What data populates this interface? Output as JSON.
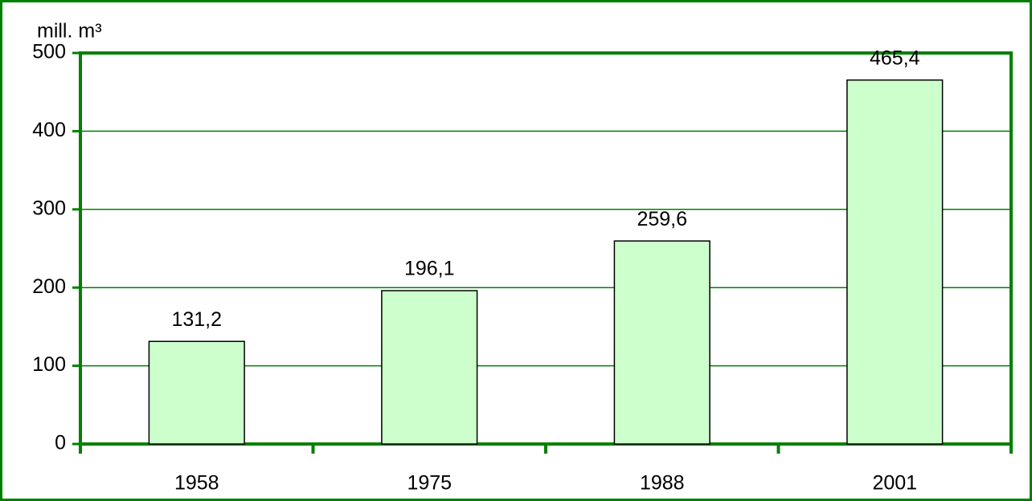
{
  "chart_data": {
    "type": "bar",
    "y_axis_label": "mill. m³",
    "categories": [
      "1958",
      "1975",
      "1988",
      "2001"
    ],
    "values": [
      131.2,
      196.1,
      259.6,
      465.4
    ],
    "value_labels": [
      "131,2",
      "196,1",
      "259,6",
      "465,4"
    ],
    "color": "#ccffcc",
    "ylim": [
      0,
      500
    ],
    "yticks": [
      0,
      100,
      200,
      300,
      400,
      500
    ],
    "grid": true
  }
}
